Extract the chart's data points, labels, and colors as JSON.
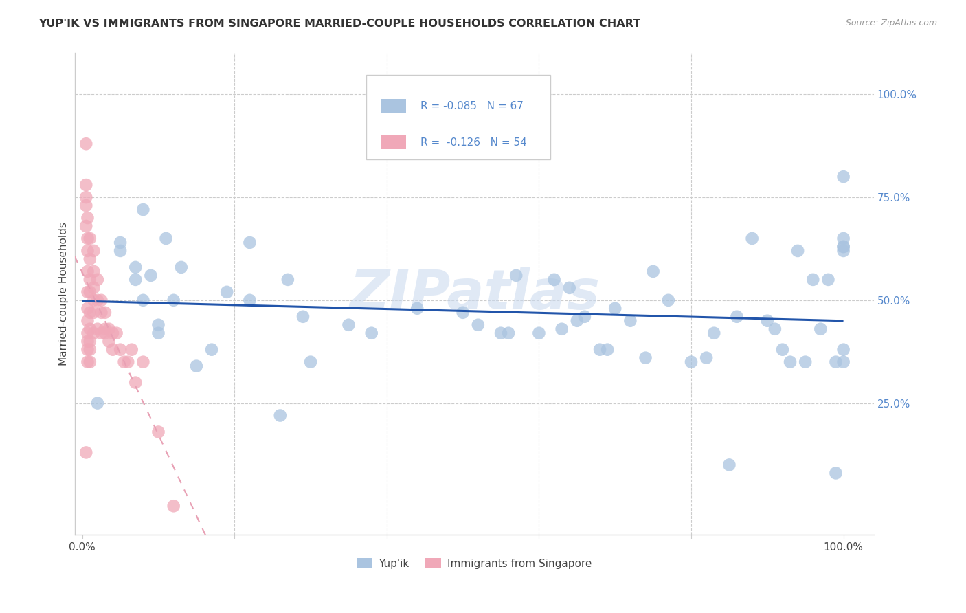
{
  "title": "YUP'IK VS IMMIGRANTS FROM SINGAPORE MARRIED-COUPLE HOUSEHOLDS CORRELATION CHART",
  "source": "Source: ZipAtlas.com",
  "ylabel_label": "Married-couple Households",
  "background_color": "#ffffff",
  "grid_color": "#cccccc",
  "blue_scatter_color": "#aac4e0",
  "pink_scatter_color": "#f0a8b8",
  "blue_line_color": "#2255aa",
  "pink_line_color": "#e8a0b4",
  "ytick_color": "#5588cc",
  "watermark": "ZIPatlas",
  "blue_R": -0.085,
  "blue_N": 67,
  "pink_R": -0.126,
  "pink_N": 54,
  "blue_x": [
    0.02,
    0.05,
    0.05,
    0.08,
    0.09,
    0.1,
    0.1,
    0.11,
    0.12,
    0.13,
    0.15,
    0.17,
    0.19,
    0.22,
    0.22,
    0.27,
    0.29,
    0.3,
    0.35,
    0.38,
    0.44,
    0.5,
    0.52,
    0.55,
    0.56,
    0.57,
    0.6,
    0.62,
    0.63,
    0.64,
    0.65,
    0.66,
    0.68,
    0.69,
    0.7,
    0.72,
    0.74,
    0.75,
    0.77,
    0.8,
    0.82,
    0.83,
    0.85,
    0.86,
    0.88,
    0.9,
    0.91,
    0.92,
    0.93,
    0.94,
    0.95,
    0.96,
    0.97,
    0.98,
    0.99,
    0.99,
    1.0,
    1.0,
    1.0,
    1.0,
    1.0,
    1.0,
    1.0,
    0.07,
    0.07,
    0.26,
    0.08
  ],
  "blue_y": [
    0.25,
    0.62,
    0.64,
    0.5,
    0.56,
    0.42,
    0.44,
    0.65,
    0.5,
    0.58,
    0.34,
    0.38,
    0.52,
    0.5,
    0.64,
    0.55,
    0.46,
    0.35,
    0.44,
    0.42,
    0.48,
    0.47,
    0.44,
    0.42,
    0.42,
    0.56,
    0.42,
    0.55,
    0.43,
    0.53,
    0.45,
    0.46,
    0.38,
    0.38,
    0.48,
    0.45,
    0.36,
    0.57,
    0.5,
    0.35,
    0.36,
    0.42,
    0.1,
    0.46,
    0.65,
    0.45,
    0.43,
    0.38,
    0.35,
    0.62,
    0.35,
    0.55,
    0.43,
    0.55,
    0.08,
    0.35,
    0.35,
    0.62,
    0.63,
    0.65,
    0.63,
    0.38,
    0.8,
    0.55,
    0.58,
    0.22,
    0.72
  ],
  "pink_x": [
    0.005,
    0.005,
    0.005,
    0.005,
    0.005,
    0.005,
    0.007,
    0.007,
    0.007,
    0.007,
    0.007,
    0.007,
    0.007,
    0.007,
    0.007,
    0.007,
    0.007,
    0.01,
    0.01,
    0.01,
    0.01,
    0.01,
    0.01,
    0.01,
    0.01,
    0.01,
    0.015,
    0.015,
    0.015,
    0.015,
    0.015,
    0.015,
    0.02,
    0.02,
    0.02,
    0.025,
    0.025,
    0.025,
    0.03,
    0.03,
    0.03,
    0.035,
    0.035,
    0.04,
    0.04,
    0.045,
    0.05,
    0.055,
    0.06,
    0.065,
    0.07,
    0.08,
    0.1,
    0.12
  ],
  "pink_y": [
    0.88,
    0.78,
    0.75,
    0.73,
    0.68,
    0.13,
    0.7,
    0.65,
    0.62,
    0.57,
    0.52,
    0.48,
    0.45,
    0.42,
    0.4,
    0.38,
    0.35,
    0.65,
    0.6,
    0.55,
    0.52,
    0.47,
    0.43,
    0.4,
    0.38,
    0.35,
    0.62,
    0.57,
    0.53,
    0.5,
    0.47,
    0.42,
    0.55,
    0.5,
    0.43,
    0.5,
    0.47,
    0.42,
    0.43,
    0.47,
    0.42,
    0.43,
    0.4,
    0.42,
    0.38,
    0.42,
    0.38,
    0.35,
    0.35,
    0.38,
    0.3,
    0.35,
    0.18,
    0.0
  ]
}
